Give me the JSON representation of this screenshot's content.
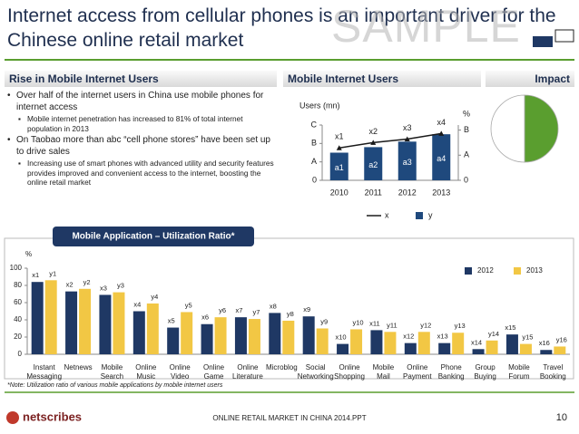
{
  "header": {
    "title": "Internet access from cellular phones is an important driver for the Chinese online retail market",
    "watermark": "SAMPLE"
  },
  "left": {
    "heading": "Rise in Mobile Internet Users",
    "bullets": [
      {
        "text": "Over half of the internet users in China use mobile phones for internet access",
        "subs": [
          "Mobile internet penetration has increased to 81% of total internet population in 2013"
        ]
      },
      {
        "text": "On Taobao more than abc “cell phone stores” have been set up to drive sales",
        "subs": [
          "Increasing use of smart phones with advanced utility and security features provides improved and convenient access to the internet, boosting the  online retail market"
        ]
      }
    ]
  },
  "impact": {
    "heading": "Impact"
  },
  "chart_data": [
    {
      "type": "bar",
      "title": "Mobile Internet Users",
      "y_label": "Users (mn)",
      "y2_label": "%",
      "categories": [
        "2010",
        "2011",
        "2012",
        "2013"
      ],
      "series": [
        {
          "name": "x",
          "type": "line",
          "axis": "y2",
          "color": "#1a1a1a",
          "values": [
            1.29,
            1.5,
            1.64,
            1.86
          ],
          "value_labels": [
            "x1",
            "x2",
            "x3",
            "x4"
          ]
        },
        {
          "name": "y",
          "type": "bar",
          "color": "#1f497d",
          "values": [
            1.5,
            1.8,
            2.1,
            2.5
          ],
          "value_labels": [
            "a1",
            "a2",
            "a3",
            "a4"
          ]
        }
      ],
      "ylim": [
        0,
        3
      ],
      "yticks": [
        0,
        {
          "value": 1,
          "label": "A"
        },
        {
          "value": 2,
          "label": "B"
        },
        {
          "value": 3,
          "label": "C"
        }
      ],
      "y2lim": [
        0,
        2.2
      ],
      "y2ticks": [
        0,
        {
          "value": 1,
          "label": "A"
        },
        {
          "value": 2,
          "label": "B"
        }
      ],
      "legend": "bottom"
    },
    {
      "type": "pie",
      "values": [
        50,
        50
      ],
      "colors": [
        "#5a9e2f",
        "#ffffff"
      ]
    },
    {
      "type": "bar",
      "title": "Mobile Application – Utilization Ratio*",
      "y_label": "%",
      "categories": [
        "Instant Messaging",
        "Netnews",
        "Mobile Search",
        "Online Music",
        "Online Video",
        "Online Game",
        "Online Literature",
        "Microblog",
        "Social Networking",
        "Online Shopping",
        "Mobile Mail",
        "Online Payment",
        "Phone Banking",
        "Group Buying",
        "Mobile Forum",
        "Travel Booking"
      ],
      "series": [
        {
          "name": "2012",
          "type": "bar",
          "color": "#1f3864",
          "values": [
            84,
            73,
            69,
            50,
            31,
            35,
            43,
            48,
            44,
            12,
            28,
            13,
            13,
            6,
            23,
            5
          ],
          "value_labels": [
            "x1",
            "x2",
            "x3",
            "x4",
            "x5",
            "x6",
            "x7",
            "x8",
            "x9",
            "x10",
            "x11",
            "x12",
            "x13",
            "x14",
            "x15",
            "x16"
          ]
        },
        {
          "name": "2013",
          "type": "bar",
          "color": "#f2c744",
          "values": [
            86,
            76,
            72,
            59,
            49,
            43,
            41,
            39,
            30,
            29,
            26,
            26,
            25,
            16,
            12,
            9
          ],
          "value_labels": [
            "y1",
            "y2",
            "y3",
            "y4",
            "y5",
            "y6",
            "y7",
            "y8",
            "y9",
            "y10",
            "y11",
            "y12",
            "y13",
            "y14",
            "y15",
            "y16"
          ]
        }
      ],
      "ylim": [
        0,
        100
      ],
      "yticks": [
        0,
        20,
        40,
        60,
        80,
        100
      ],
      "legend": "top-right",
      "note": "*Note: Utilization ratio of various mobile applications by mobile internet users"
    }
  ],
  "footer": {
    "logo": "netscribes",
    "text": "ONLINE RETAIL MARKET IN CHINA 2014.PPT",
    "page": "10"
  }
}
